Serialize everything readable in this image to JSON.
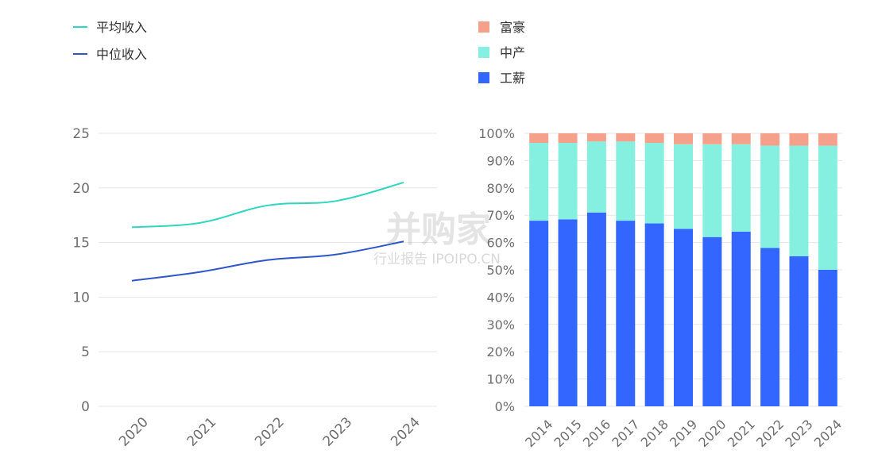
{
  "chart_data": [
    {
      "type": "line",
      "x": [
        "2020",
        "2021",
        "2022",
        "2023",
        "2024"
      ],
      "ylim": [
        0,
        25
      ],
      "yticks": [
        0,
        5,
        10,
        15,
        20,
        25
      ],
      "grid": true,
      "legend_position": "top-left",
      "series": [
        {
          "name": "平均收入",
          "values": [
            16.4,
            16.8,
            18.4,
            18.8,
            20.5
          ],
          "color": "#2fd6c0"
        },
        {
          "name": "中位收入",
          "values": [
            11.5,
            12.3,
            13.4,
            13.9,
            15.1
          ],
          "color": "#2d57c8"
        }
      ]
    },
    {
      "type": "bar",
      "stacked": true,
      "percent": true,
      "categories": [
        "2014",
        "2015",
        "2016",
        "2017",
        "2018",
        "2019",
        "2020",
        "2021",
        "2022",
        "2023",
        "2024"
      ],
      "ylim": [
        0,
        100
      ],
      "yticks": [
        "0%",
        "10%",
        "20%",
        "30%",
        "40%",
        "50%",
        "60%",
        "70%",
        "80%",
        "90%",
        "100%"
      ],
      "grid": true,
      "legend_position": "top-left",
      "series": [
        {
          "name": "工薪",
          "values": [
            68,
            68.5,
            71,
            68,
            67,
            65,
            62,
            64,
            58,
            55,
            50
          ],
          "color": "#3366ff"
        },
        {
          "name": "中产",
          "values": [
            28.5,
            28,
            26,
            29,
            29.5,
            31,
            34,
            32,
            37.5,
            40.5,
            45.5
          ],
          "color": "#86f0e0"
        },
        {
          "name": "富豪",
          "values": [
            3.5,
            3.5,
            3,
            3,
            3.5,
            4,
            4,
            4,
            4.5,
            4.5,
            4.5
          ],
          "color": "#f5a08a"
        }
      ]
    }
  ],
  "watermark": {
    "main": "并购家",
    "sub": "行业报告 IPOIPO.CN"
  }
}
